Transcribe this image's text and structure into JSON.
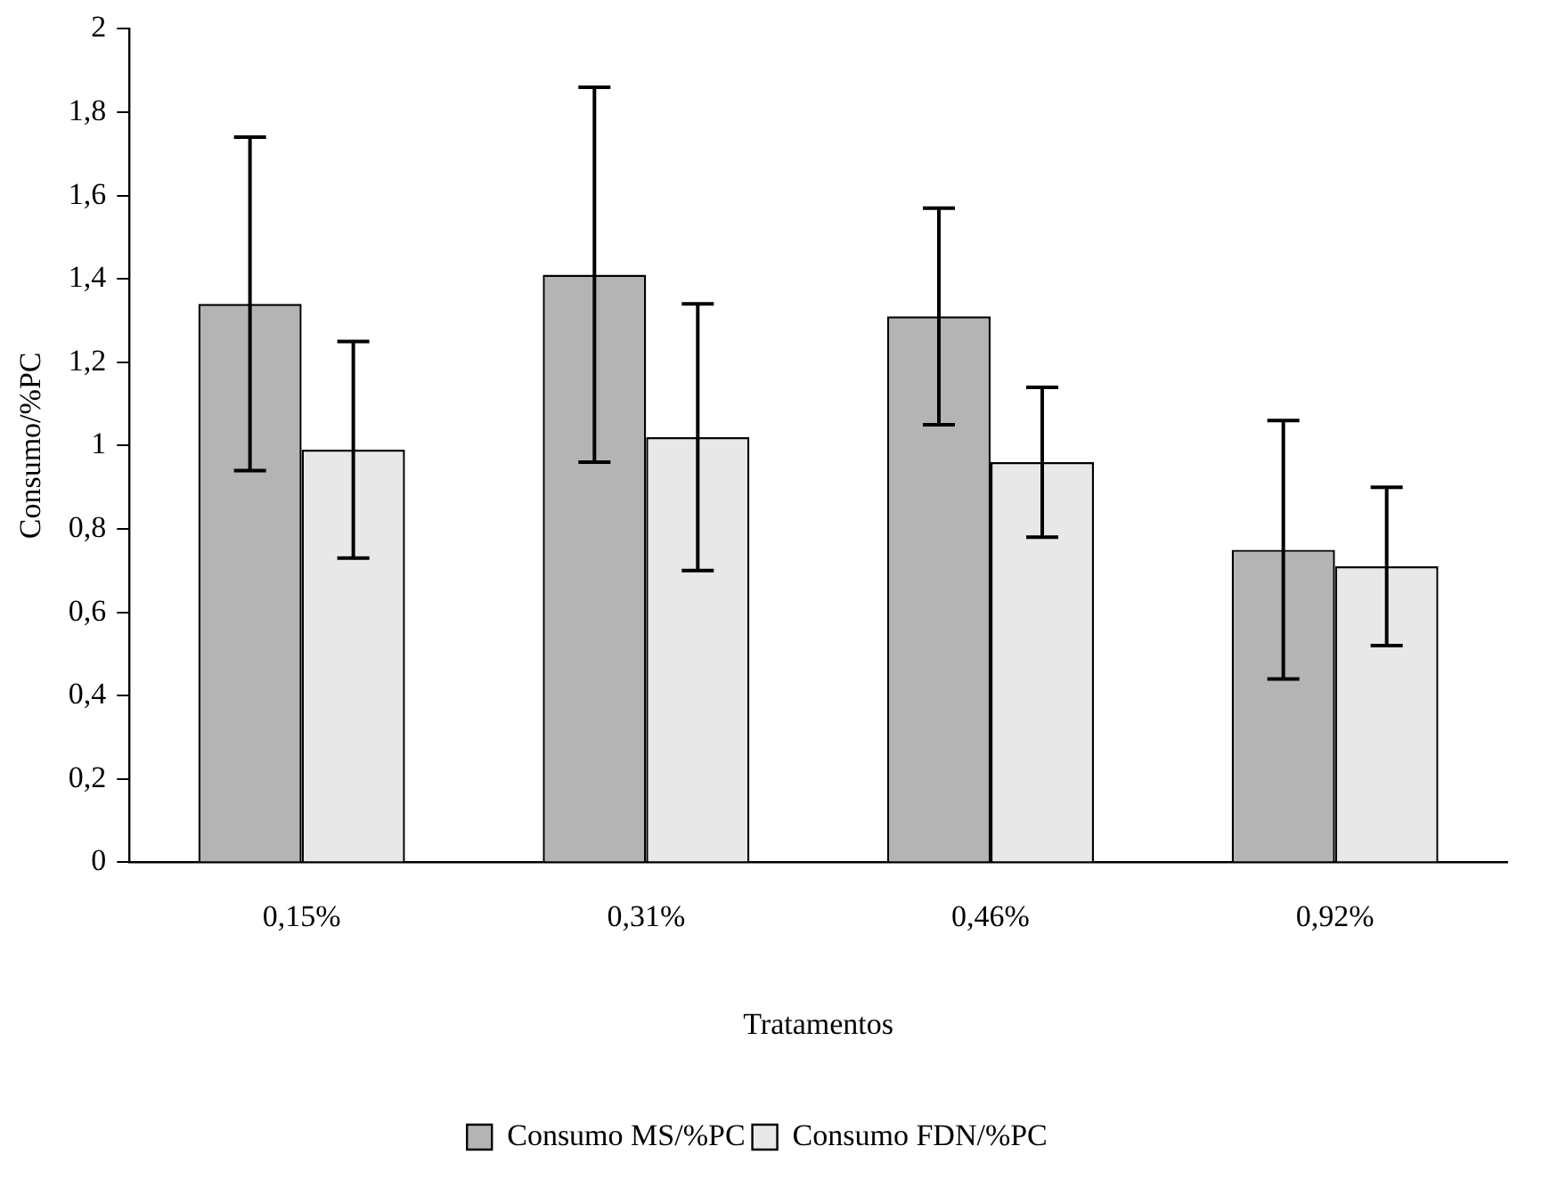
{
  "chart_data": {
    "type": "bar",
    "xlabel": "Tratamentos",
    "ylabel": "Consumo/%PC",
    "categories": [
      "0,15%",
      "0,31%",
      "0,46%",
      "0,92%"
    ],
    "series": [
      {
        "name": "Consumo MS/%PC",
        "color": "#b4b4b4",
        "values": [
          1.34,
          1.41,
          1.31,
          0.75
        ],
        "errors": [
          0.4,
          0.45,
          0.26,
          0.31
        ]
      },
      {
        "name": "Consumo FDN/%PC",
        "color": "#e8e8e8",
        "values": [
          0.99,
          1.02,
          0.96,
          0.71
        ],
        "errors": [
          0.26,
          0.32,
          0.18,
          0.19
        ]
      }
    ],
    "ylim": [
      0,
      2
    ],
    "yticks": [
      0,
      {
        "value": 0.2,
        "label": "0,2"
      },
      {
        "value": 0.4,
        "label": "0,4"
      },
      {
        "value": 0.6,
        "label": "0,6"
      },
      {
        "value": 0.8,
        "label": "0,8"
      },
      1,
      {
        "value": 1.2,
        "label": "1,2"
      },
      {
        "value": 1.4,
        "label": "1,4"
      },
      {
        "value": 1.6,
        "label": "1,6"
      },
      {
        "value": 1.8,
        "label": "1,8"
      },
      2
    ],
    "grid": false,
    "legend": "bottom"
  }
}
